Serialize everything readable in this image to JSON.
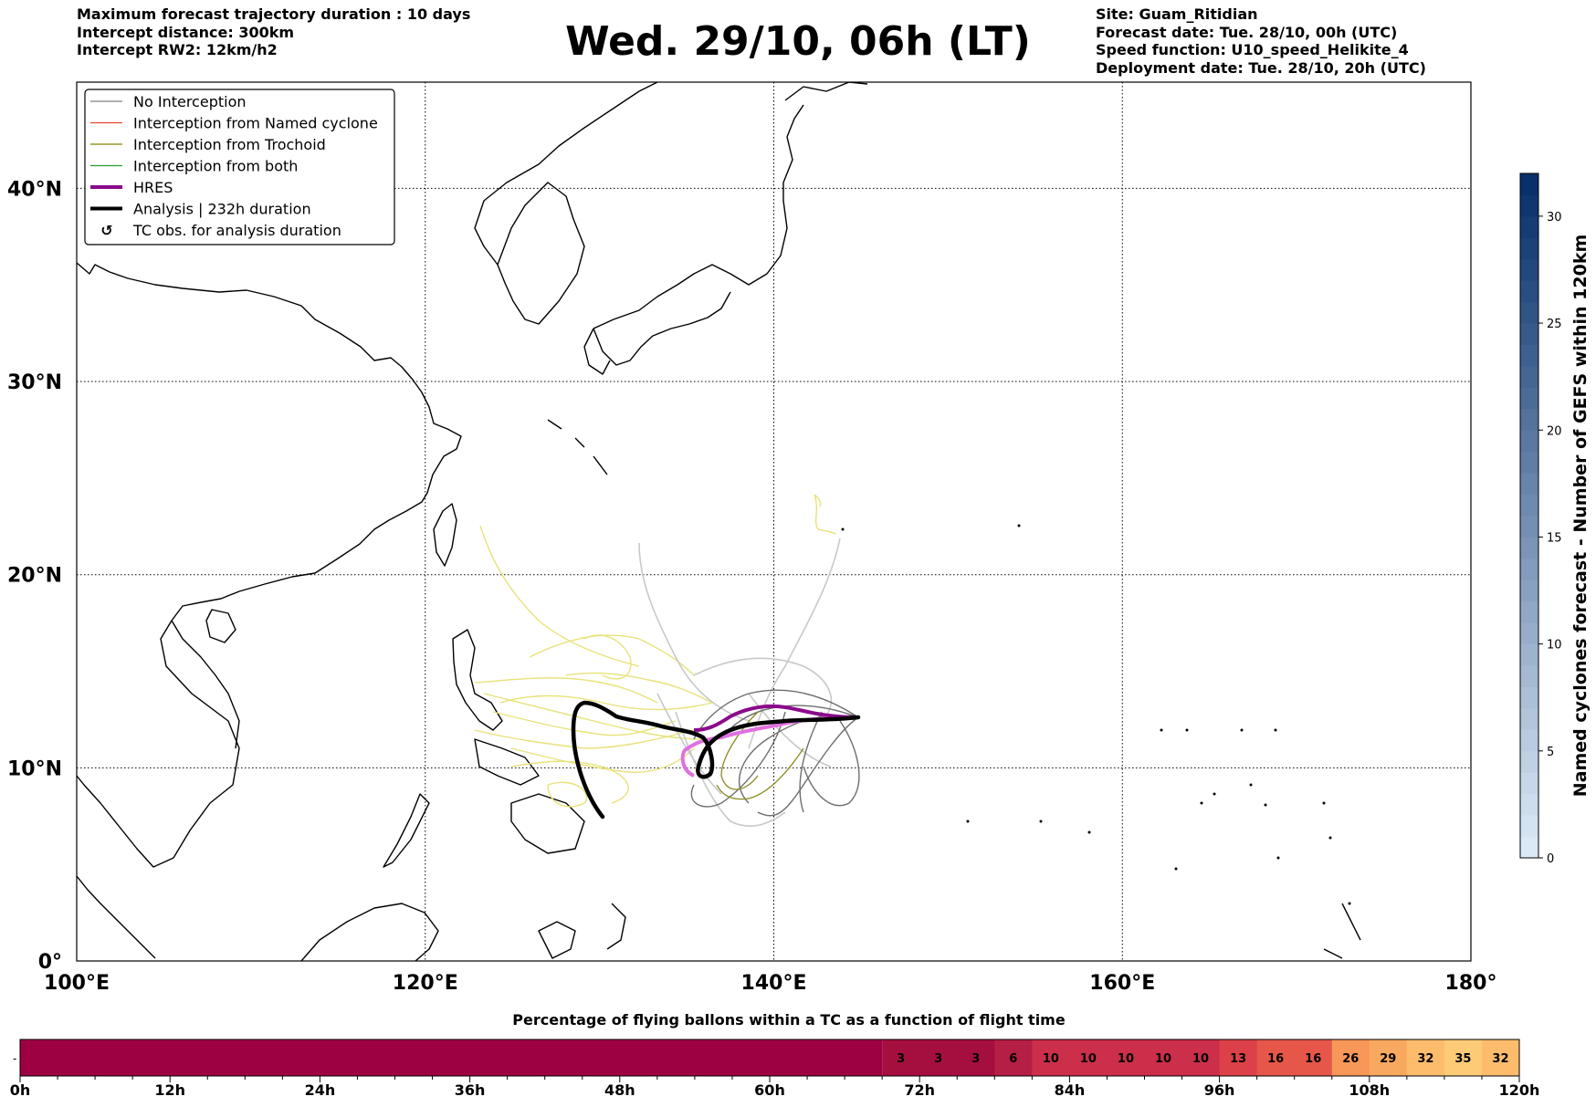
{
  "title": "Wed. 29/10, 06h (LT)",
  "header_left": [
    "Maximum forecast trajectory duration : 10 days",
    "Intercept distance: 300km",
    "Intercept RW2: 12km/h2"
  ],
  "header_right": [
    "Site: Guam_Ritidian",
    "Forecast date: Tue. 28/10, 00h (UTC)",
    "Speed function: U10_speed_Helikite_4",
    "Deployment date: Tue. 28/10, 20h (UTC)"
  ],
  "map": {
    "lon_range": [
      100,
      180
    ],
    "lat_range": [
      0,
      45.5
    ],
    "lon_ticks": [
      "100°E",
      "120°E",
      "140°E",
      "160°E",
      "180°"
    ],
    "lat_ticks": [
      "0°",
      "10°N",
      "20°N",
      "30°N",
      "40°N"
    ],
    "legend": [
      {
        "label": "No Interception",
        "color": "#808080",
        "style": "thin"
      },
      {
        "label": "Interception from Named cyclone",
        "color": "#e8452c",
        "style": "thin"
      },
      {
        "label": "Interception from Trochoid",
        "color": "#808000",
        "style": "thin"
      },
      {
        "label": "Interception from both",
        "color": "#2e9a2e",
        "style": "thin"
      },
      {
        "label": "HRES",
        "color": "#8b0a8b",
        "style": "thick"
      },
      {
        "label": "Analysis | 232h duration",
        "color": "#000000",
        "style": "thick"
      },
      {
        "label": "TC obs. for analysis duration",
        "color": "#000000",
        "style": "symbol"
      }
    ],
    "colors": {
      "yellow_tracks": "#e8e27a",
      "grey_tracks": "#c8c8c8",
      "dark_tracks": "#6e6e6e",
      "olive_tracks": "#8a8a20",
      "hres": "#8b0a8b",
      "hres_light": "#e070e0"
    }
  },
  "colorbar_right": {
    "label": "Named cyclones forecast - Number of GEFS within 120km",
    "min": 0,
    "max": 32,
    "ticks": [
      "0",
      "5",
      "10",
      "15",
      "20",
      "25",
      "30"
    ],
    "color_low": "#dbe9f6",
    "color_high": "#08306b"
  },
  "flight_bar": {
    "title": "Percentage of flying ballons within a TC as a function of flight time",
    "ticks": [
      "0h",
      "12h",
      "24h",
      "36h",
      "48h",
      "60h",
      "72h",
      "84h",
      "96h",
      "108h",
      "120h"
    ],
    "max_hours": 120,
    "first_segment_end_hours": 69,
    "first_segment_color": "#9e0142",
    "segments": [
      {
        "value": "3",
        "color": "#a50f3f"
      },
      {
        "value": "3",
        "color": "#a50f3f"
      },
      {
        "value": "3",
        "color": "#a50f3f"
      },
      {
        "value": "6",
        "color": "#b51e45"
      },
      {
        "value": "10",
        "color": "#cc2f4a"
      },
      {
        "value": "10",
        "color": "#cc2f4a"
      },
      {
        "value": "10",
        "color": "#cc2f4a"
      },
      {
        "value": "10",
        "color": "#cc2f4a"
      },
      {
        "value": "10",
        "color": "#cc2f4a"
      },
      {
        "value": "13",
        "color": "#dc4149"
      },
      {
        "value": "16",
        "color": "#e6574a"
      },
      {
        "value": "16",
        "color": "#e6574a"
      },
      {
        "value": "26",
        "color": "#f79858"
      },
      {
        "value": "29",
        "color": "#f9a95f"
      },
      {
        "value": "32",
        "color": "#fcbc6c"
      },
      {
        "value": "35",
        "color": "#fdca76"
      },
      {
        "value": "32",
        "color": "#fcbc6c"
      }
    ]
  }
}
